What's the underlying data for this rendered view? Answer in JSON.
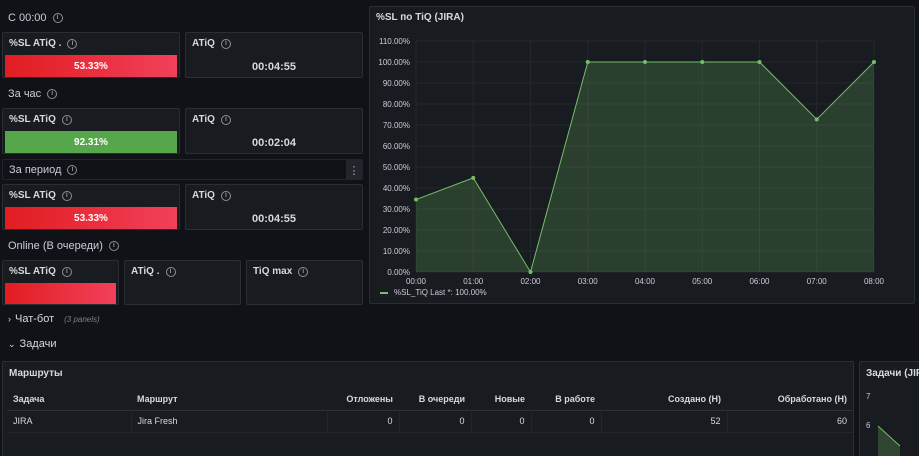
{
  "left": {
    "row1": {
      "label": "С 00:00",
      "sl_title": "%SL ATiQ .",
      "sl_value": "53.33%",
      "atiq_title": "ATiQ",
      "atiq_value": "00:04:55"
    },
    "row2": {
      "label": "За час",
      "sl_title": "%SL ATiQ",
      "sl_value": "92.31%",
      "atiq_title": "ATiQ",
      "atiq_value": "00:02:04"
    },
    "row3": {
      "label": "За период",
      "sl_title": "%SL ATiQ",
      "sl_value": "53.33%",
      "atiq_title": "ATiQ",
      "atiq_value": "00:04:55"
    },
    "row4": {
      "label": "Online (В очереди)",
      "sl_title": "%SL ATiQ",
      "atiq_title": "ATiQ .",
      "tiq_title": "TiQ max"
    },
    "colors": {
      "red": "#e11d21",
      "green": "#56a64b"
    }
  },
  "sections": {
    "chatbot": {
      "label": "Чат-бот",
      "sub": "(3 panels)"
    },
    "tasks": {
      "label": "Задачи"
    }
  },
  "routes_panel": {
    "title": "Маршруты",
    "columns": [
      "Задача",
      "Маршрут",
      "Отложены",
      "В очереди",
      "Новые",
      "В работе",
      "Создано (Н)",
      "Обработано (Н)"
    ],
    "rows": [
      [
        "JIRA",
        "Jira Fresh",
        "0",
        "0",
        "0",
        "0",
        "52",
        "60"
      ]
    ]
  },
  "tasks_panel": {
    "title": "Задачи (JIR",
    "ticks": [
      "7",
      "6"
    ]
  },
  "chart_data": {
    "type": "area",
    "title": "%SL по TiQ (JIRA)",
    "x": [
      "00:00",
      "01:00",
      "02:00",
      "03:00",
      "04:00",
      "05:00",
      "06:00",
      "07:00",
      "08:00"
    ],
    "series": [
      {
        "name": "%SL_TiQ",
        "values": [
          34.5,
          44.8,
          0,
          100,
          100,
          100,
          100,
          72.7,
          100
        ]
      }
    ],
    "yticks": [
      "0.00%",
      "10.00%",
      "20.00%",
      "30.00%",
      "40.00%",
      "50.00%",
      "60.00%",
      "70.00%",
      "80.00%",
      "90.00%",
      "100.00%",
      "110.00%"
    ],
    "ylim": [
      0,
      110
    ],
    "legend_text": "%SL_TiQ  Last *: 100.00%",
    "color": "#73bf69",
    "grid": true,
    "legend": "bottom-left"
  }
}
